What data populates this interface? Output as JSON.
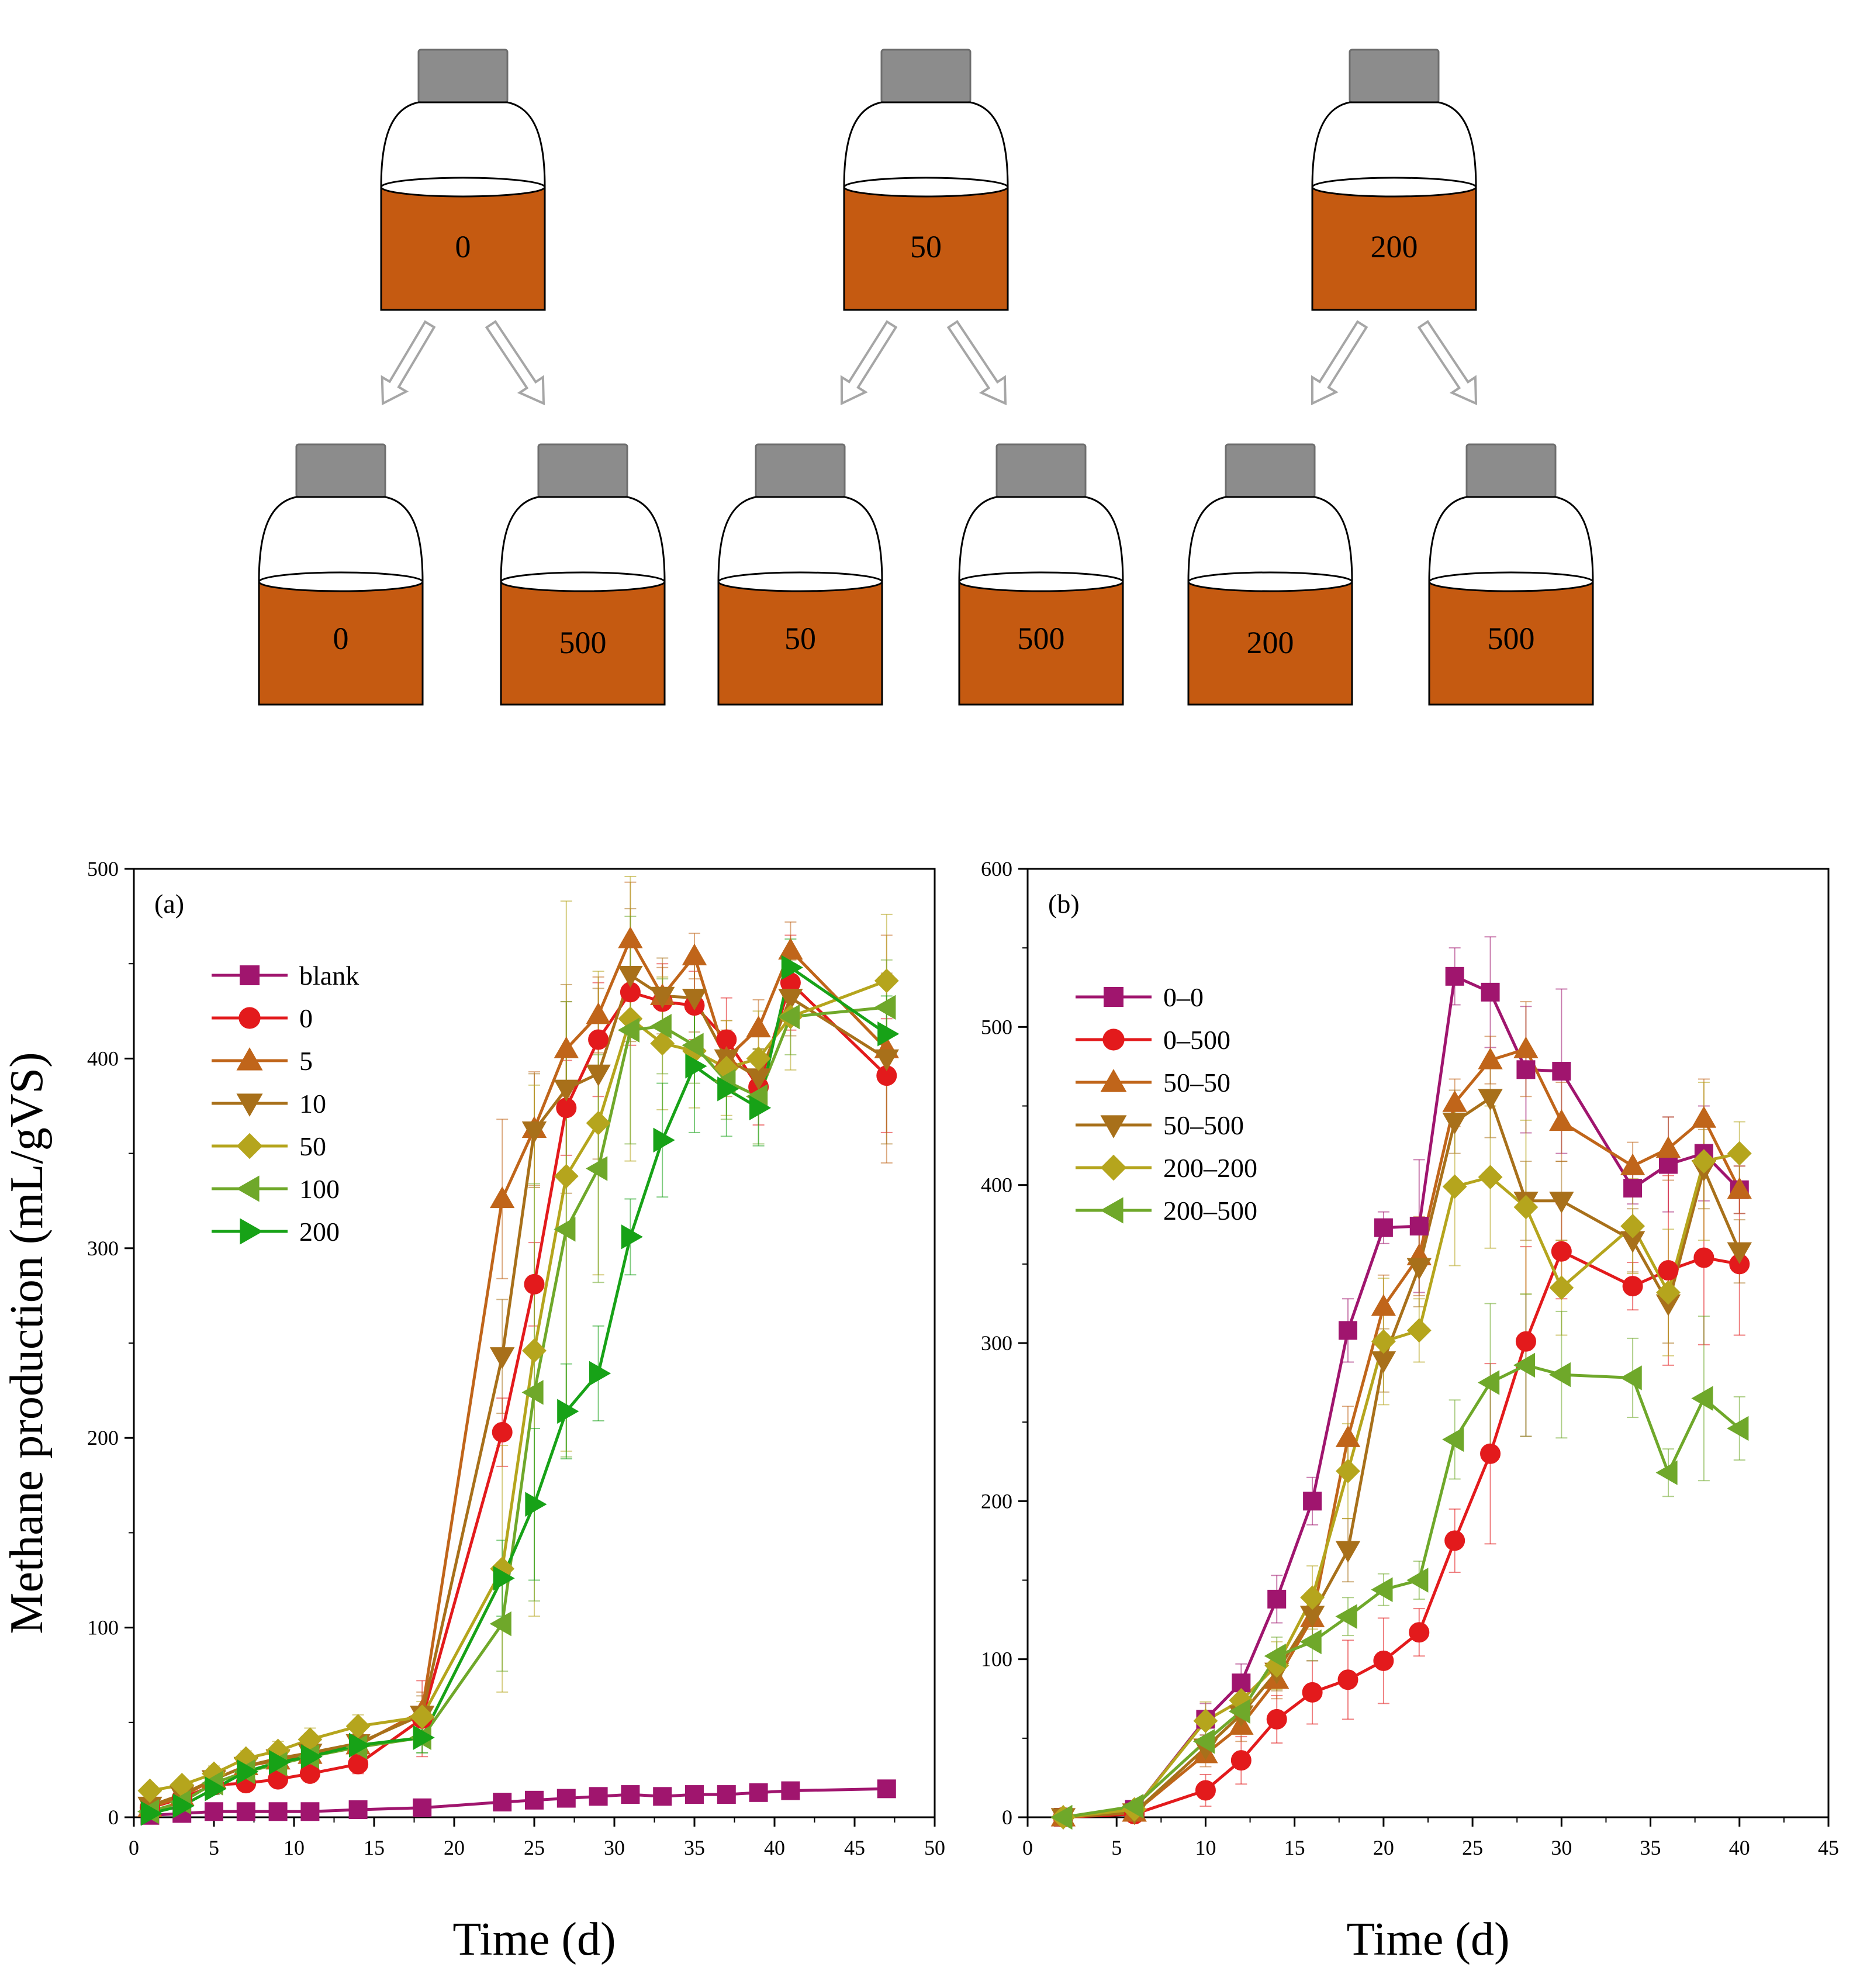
{
  "colors": {
    "liquid": "#C55A11",
    "cap": "#8C8C8C",
    "arrow_stroke": "#A6A6A6",
    "axis": "#000000",
    "series": {
      "blank": "#A0156E",
      "0": "#E31A1C",
      "5": "#C0651A",
      "10": "#A8701A",
      "50": "#B5A51D",
      "100": "#6FA82A",
      "200": "#17A217"
    }
  },
  "schematic": {
    "parents": [
      "0",
      "50",
      "200"
    ],
    "children": [
      "0",
      "500",
      "50",
      "500",
      "200",
      "500"
    ]
  },
  "chart_data": [
    {
      "type": "line",
      "panel_label": "(a)",
      "xlabel": "Time (d)",
      "ylabel": "Methane production (mL/gVS)",
      "xlim": [
        0,
        50
      ],
      "ylim": [
        0,
        500
      ],
      "xticks": [
        0,
        5,
        10,
        15,
        20,
        25,
        30,
        35,
        40,
        45,
        50
      ],
      "yticks": [
        0,
        100,
        200,
        300,
        400,
        500
      ],
      "legend_position": "upper-left",
      "series": [
        {
          "name": "blank",
          "color": "#A0156E",
          "marker": "square",
          "x": [
            1,
            3,
            5,
            7,
            9,
            11,
            14,
            18,
            23,
            25,
            27,
            29,
            31,
            33,
            35,
            37,
            39,
            41,
            47
          ],
          "y": [
            1,
            2,
            3,
            3,
            3,
            3,
            4,
            5,
            8,
            9,
            10,
            11,
            12,
            11,
            12,
            12,
            13,
            14,
            15
          ],
          "err": [
            0,
            0,
            0,
            0,
            0,
            0,
            0,
            0,
            0,
            0,
            0,
            0,
            0,
            0,
            0,
            0,
            0,
            0,
            0
          ]
        },
        {
          "name": "0",
          "color": "#E31A1C",
          "marker": "circle",
          "x": [
            1,
            3,
            5,
            7,
            9,
            11,
            14,
            18,
            23,
            25,
            27,
            29,
            31,
            33,
            35,
            37,
            39,
            41,
            47
          ],
          "y": [
            5,
            10,
            17,
            18,
            20,
            23,
            28,
            52,
            203,
            281,
            374,
            410,
            435,
            430,
            428,
            410,
            385,
            440,
            391
          ],
          "err": [
            2,
            3,
            3,
            3,
            3,
            4,
            5,
            20,
            18,
            22,
            25,
            30,
            28,
            20,
            18,
            22,
            20,
            25,
            30
          ]
        },
        {
          "name": "5",
          "color": "#C0651A",
          "marker": "triangle-up",
          "x": [
            1,
            3,
            5,
            7,
            9,
            11,
            14,
            18,
            23,
            25,
            27,
            29,
            31,
            33,
            35,
            37,
            39,
            41,
            47
          ],
          "y": [
            5,
            11,
            20,
            27,
            30,
            33,
            38,
            56,
            326,
            363,
            405,
            423,
            463,
            433,
            454,
            400,
            416,
            457,
            405
          ],
          "err": [
            2,
            3,
            3,
            3,
            4,
            4,
            5,
            10,
            42,
            30,
            25,
            20,
            30,
            15,
            12,
            20,
            15,
            15,
            60
          ]
        },
        {
          "name": "10",
          "color": "#A8701A",
          "marker": "triangle-down",
          "x": [
            1,
            3,
            5,
            7,
            9,
            11,
            14,
            18,
            23,
            25,
            27,
            29,
            31,
            33,
            35,
            37,
            39,
            41,
            47
          ],
          "y": [
            6,
            12,
            20,
            27,
            31,
            34,
            39,
            54,
            243,
            362,
            384,
            392,
            444,
            433,
            432,
            400,
            390,
            432,
            400
          ],
          "err": [
            2,
            3,
            3,
            3,
            4,
            4,
            5,
            10,
            30,
            30,
            55,
            45,
            35,
            20,
            18,
            15,
            15,
            20,
            45
          ]
        },
        {
          "name": "50",
          "color": "#B5A51D",
          "marker": "diamond",
          "x": [
            1,
            3,
            5,
            7,
            9,
            11,
            14,
            18,
            23,
            25,
            27,
            29,
            31,
            33,
            35,
            37,
            39,
            41,
            47
          ],
          "y": [
            14,
            17,
            23,
            31,
            35,
            41,
            48,
            53,
            131,
            246,
            338,
            366,
            421,
            408,
            404,
            395,
            400,
            422,
            441
          ],
          "err": [
            3,
            3,
            4,
            4,
            5,
            6,
            6,
            8,
            65,
            140,
            145,
            80,
            75,
            35,
            30,
            25,
            25,
            28,
            35
          ]
        },
        {
          "name": "100",
          "color": "#6FA82A",
          "marker": "triangle-left",
          "x": [
            1,
            3,
            5,
            7,
            9,
            11,
            14,
            18,
            23,
            25,
            27,
            29,
            31,
            33,
            35,
            37,
            39,
            41,
            47
          ],
          "y": [
            3,
            8,
            18,
            24,
            28,
            32,
            37,
            42,
            102,
            224,
            310,
            342,
            415,
            417,
            407,
            388,
            380,
            422,
            427
          ],
          "err": [
            2,
            3,
            3,
            3,
            4,
            4,
            5,
            8,
            25,
            110,
            120,
            60,
            60,
            25,
            20,
            20,
            25,
            20,
            25
          ]
        },
        {
          "name": "200",
          "color": "#17A217",
          "marker": "triangle-right",
          "x": [
            1,
            3,
            5,
            7,
            9,
            11,
            14,
            18,
            23,
            25,
            27,
            29,
            31,
            33,
            35,
            37,
            39,
            41,
            47
          ],
          "y": [
            2,
            6,
            15,
            24,
            29,
            32,
            38,
            42,
            126,
            165,
            214,
            234,
            306,
            357,
            396,
            384,
            374,
            448,
            413
          ],
          "err": [
            2,
            3,
            3,
            3,
            4,
            4,
            5,
            8,
            20,
            40,
            25,
            25,
            20,
            30,
            35,
            25,
            20,
            15,
            20
          ]
        }
      ]
    },
    {
      "type": "line",
      "panel_label": "(b)",
      "xlabel": "Time (d)",
      "ylabel": "",
      "xlim": [
        0,
        45
      ],
      "ylim": [
        0,
        600
      ],
      "xticks": [
        0,
        5,
        10,
        15,
        20,
        25,
        30,
        35,
        40,
        45
      ],
      "yticks": [
        0,
        100,
        200,
        300,
        400,
        500,
        600
      ],
      "legend_position": "upper-left",
      "series": [
        {
          "name": "0–0",
          "color": "#A0156E",
          "marker": "square",
          "x": [
            2,
            6,
            10,
            12,
            14,
            16,
            18,
            20,
            22,
            24,
            26,
            28,
            30,
            34,
            36,
            38,
            40
          ],
          "y": [
            0,
            5,
            62,
            85,
            138,
            200,
            308,
            373,
            374,
            532,
            522,
            473,
            472,
            398,
            413,
            420,
            397
          ],
          "err": [
            0,
            2,
            10,
            12,
            15,
            15,
            20,
            10,
            42,
            18,
            35,
            40,
            52,
            10,
            30,
            30,
            15
          ]
        },
        {
          "name": "0–500",
          "color": "#E31A1C",
          "marker": "circle",
          "x": [
            2,
            6,
            10,
            12,
            14,
            16,
            18,
            20,
            22,
            24,
            26,
            28,
            30,
            34,
            36,
            38,
            40
          ],
          "y": [
            0,
            2,
            17,
            36,
            62,
            79,
            87,
            99,
            117,
            175,
            230,
            301,
            358,
            336,
            346,
            354,
            350
          ],
          "err": [
            0,
            2,
            10,
            15,
            15,
            20,
            25,
            27,
            15,
            20,
            57,
            60,
            30,
            15,
            60,
            55,
            45
          ]
        },
        {
          "name": "50–50",
          "color": "#C0651A",
          "marker": "triangle-up",
          "x": [
            2,
            6,
            10,
            12,
            14,
            16,
            18,
            20,
            22,
            24,
            26,
            28,
            30,
            34,
            36,
            38,
            40
          ],
          "y": [
            0,
            3,
            40,
            58,
            87,
            126,
            240,
            323,
            355,
            452,
            479,
            486,
            440,
            412,
            423,
            442,
            397
          ],
          "err": [
            0,
            2,
            8,
            10,
            12,
            15,
            20,
            20,
            25,
            15,
            15,
            30,
            25,
            15,
            20,
            25,
            15
          ]
        },
        {
          "name": "50–500",
          "color": "#A8701A",
          "marker": "triangle-down",
          "x": [
            2,
            6,
            10,
            12,
            14,
            16,
            18,
            20,
            22,
            24,
            26,
            28,
            30,
            34,
            36,
            38,
            40
          ],
          "y": [
            0,
            3,
            44,
            65,
            92,
            128,
            169,
            289,
            348,
            440,
            455,
            390,
            390,
            365,
            325,
            410,
            358
          ],
          "err": [
            0,
            2,
            8,
            10,
            12,
            15,
            20,
            20,
            25,
            20,
            25,
            25,
            25,
            20,
            25,
            25,
            20
          ]
        },
        {
          "name": "200–200",
          "color": "#B5A51D",
          "marker": "diamond",
          "x": [
            2,
            6,
            10,
            12,
            14,
            16,
            18,
            20,
            22,
            24,
            26,
            28,
            30,
            34,
            36,
            38,
            40
          ],
          "y": [
            0,
            5,
            61,
            74,
            96,
            139,
            219,
            301,
            308,
            399,
            405,
            386,
            335,
            374,
            332,
            415,
            420
          ],
          "err": [
            0,
            2,
            12,
            12,
            15,
            20,
            30,
            40,
            20,
            50,
            45,
            55,
            30,
            30,
            40,
            50,
            20
          ]
        },
        {
          "name": "200–500",
          "color": "#6FA82A",
          "marker": "triangle-left",
          "x": [
            2,
            6,
            10,
            12,
            14,
            16,
            18,
            20,
            22,
            24,
            26,
            28,
            30,
            34,
            36,
            38,
            40
          ],
          "y": [
            0,
            7,
            48,
            67,
            102,
            111,
            127,
            144,
            150,
            239,
            275,
            286,
            280,
            278,
            218,
            265,
            246
          ],
          "err": [
            0,
            3,
            8,
            10,
            12,
            12,
            12,
            10,
            12,
            25,
            50,
            45,
            40,
            25,
            15,
            52,
            20
          ]
        }
      ]
    }
  ]
}
